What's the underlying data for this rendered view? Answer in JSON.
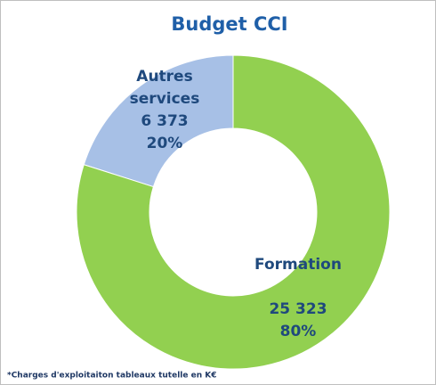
{
  "chart_data": {
    "type": "donut",
    "title": "Budget CCI",
    "categories": [
      "Autres services",
      "Formation"
    ],
    "values": [
      6373,
      25323
    ],
    "value_labels": [
      "6 373",
      "25 323"
    ],
    "percent_labels": [
      "20%",
      "80%"
    ],
    "colors": [
      "#a7c0e6",
      "#92d050"
    ],
    "footnote": "*Charges d'exploitaiton tableaux tutelle en K€"
  }
}
